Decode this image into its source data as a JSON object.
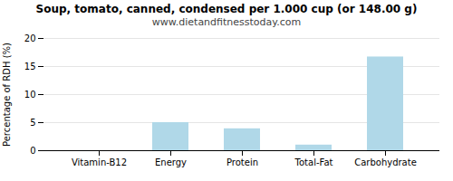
{
  "chart_data": {
    "type": "bar",
    "title": "Soup, tomato, canned, condensed per 1.000 cup (or 148.00 g)",
    "subtitle": "www.dietandfitnesstoday.com",
    "categories": [
      "Vitamin-B12",
      "Energy",
      "Protein",
      "Total-Fat",
      "Carbohydrate"
    ],
    "values": [
      0,
      5.0,
      3.9,
      1.0,
      16.7
    ],
    "color": "#b0d8e8",
    "ylabel": "Percentage of RDH (%)",
    "ylim": [
      0,
      20
    ],
    "yticks": [
      0,
      5,
      10,
      15,
      20
    ],
    "grid": true
  }
}
